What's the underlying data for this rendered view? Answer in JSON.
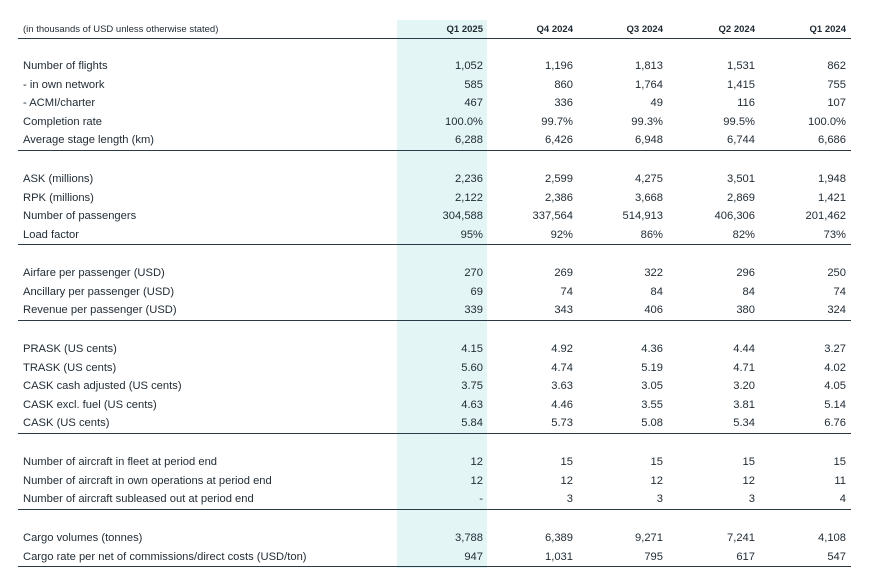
{
  "header": {
    "note": "(in thousands of USD unless otherwise stated)",
    "columns": [
      "Q1 2025",
      "Q4 2024",
      "Q3 2024",
      "Q2 2024",
      "Q1 2024"
    ]
  },
  "colors": {
    "highlight": "#e4f5f6",
    "rule": "#2a3a44"
  },
  "groups": [
    {
      "rows": [
        {
          "label": "Number of flights",
          "values": [
            "1,052",
            "1,196",
            "1,813",
            "1,531",
            "862"
          ]
        },
        {
          "label": "- in own network",
          "values": [
            "585",
            "860",
            "1,764",
            "1,415",
            "755"
          ]
        },
        {
          "label": "- ACMI/charter",
          "values": [
            "467",
            "336",
            "49",
            "116",
            "107"
          ]
        },
        {
          "label": "Completion rate",
          "values": [
            "100.0%",
            "99.7%",
            "99.3%",
            "99.5%",
            "100.0%"
          ]
        },
        {
          "label": "Average stage length (km)",
          "values": [
            "6,288",
            "6,426",
            "6,948",
            "6,744",
            "6,686"
          ]
        }
      ]
    },
    {
      "rows": [
        {
          "label": "ASK (millions)",
          "values": [
            "2,236",
            "2,599",
            "4,275",
            "3,501",
            "1,948"
          ]
        },
        {
          "label": "RPK (millions)",
          "values": [
            "2,122",
            "2,386",
            "3,668",
            "2,869",
            "1,421"
          ]
        },
        {
          "label": "Number of passengers",
          "values": [
            "304,588",
            "337,564",
            "514,913",
            "406,306",
            "201,462"
          ]
        },
        {
          "label": "Load factor",
          "values": [
            "95%",
            "92%",
            "86%",
            "82%",
            "73%"
          ]
        }
      ]
    },
    {
      "rows": [
        {
          "label": "Airfare per passenger (USD)",
          "values": [
            "270",
            "269",
            "322",
            "296",
            "250"
          ]
        },
        {
          "label": "Ancillary per passenger (USD)",
          "values": [
            "69",
            "74",
            "84",
            "84",
            "74"
          ]
        },
        {
          "label": "Revenue per passenger (USD)",
          "values": [
            "339",
            "343",
            "406",
            "380",
            "324"
          ]
        }
      ]
    },
    {
      "rows": [
        {
          "label": "PRASK (US cents)",
          "values": [
            "4.15",
            "4.92",
            "4.36",
            "4.44",
            "3.27"
          ]
        },
        {
          "label": "TRASK (US cents)",
          "values": [
            "5.60",
            "4.74",
            "5.19",
            "4.71",
            "4.02"
          ]
        },
        {
          "label": "CASK cash adjusted (US cents)",
          "values": [
            "3.75",
            "3.63",
            "3.05",
            "3.20",
            "4.05"
          ]
        },
        {
          "label": "CASK excl. fuel (US cents)",
          "values": [
            "4.63",
            "4.46",
            "3.55",
            "3.81",
            "5.14"
          ]
        },
        {
          "label": "CASK (US cents)",
          "values": [
            "5.84",
            "5.73",
            "5.08",
            "5.34",
            "6.76"
          ]
        }
      ]
    },
    {
      "rows": [
        {
          "label": "Number of aircraft in fleet at period end",
          "values": [
            "12",
            "15",
            "15",
            "15",
            "15"
          ]
        },
        {
          "label": "Number of aircraft in own operations at period end",
          "values": [
            "12",
            "12",
            "12",
            "12",
            "11"
          ]
        },
        {
          "label": "Number of aircraft subleased out at period end",
          "values": [
            "-",
            "3",
            "3",
            "3",
            "4"
          ]
        }
      ]
    },
    {
      "rows": [
        {
          "label": "Cargo volumes (tonnes)",
          "values": [
            "3,788",
            "6,389",
            "9,271",
            "7,241",
            "4,108"
          ]
        },
        {
          "label": "Cargo rate per net of commissions/direct costs (USD/ton)",
          "values": [
            "947",
            "1,031",
            "795",
            "617",
            "547"
          ]
        }
      ]
    }
  ]
}
